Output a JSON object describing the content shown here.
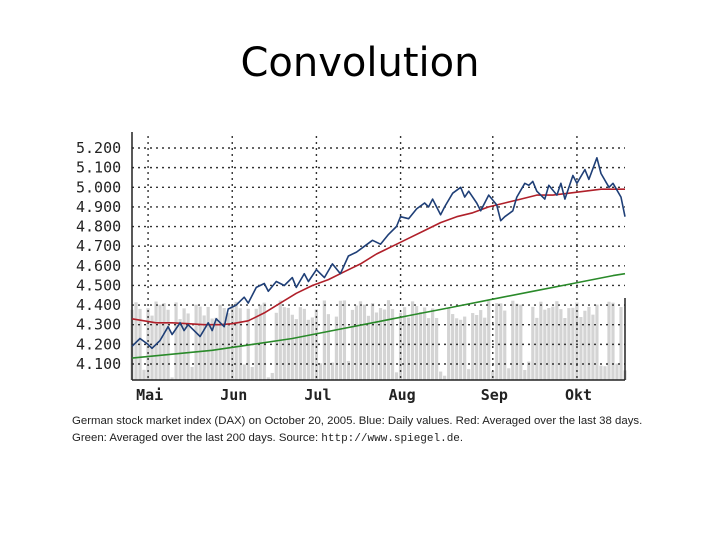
{
  "slide": {
    "title": "Convolution"
  },
  "caption": {
    "part1": "German stock market index (DAX) on October 20, 2005. Blue: Daily values. Red: Averaged over the last 38 days. Green: Averaged over the last 200 days. Source:",
    "source": "http://www.spiegel.de",
    "end": "."
  },
  "colors": {
    "blue": "#1f3f77",
    "red": "#b0202a",
    "green": "#2a8a2a",
    "volume": "#d4d4d4",
    "grid": "#333333"
  },
  "chart_data": {
    "type": "line",
    "title": "German stock market index (DAX)",
    "xlabel": "",
    "ylabel": "",
    "ylim": [
      4100,
      5200
    ],
    "grid": true,
    "yticks": [
      5200,
      5100,
      5000,
      4900,
      4800,
      4700,
      4600,
      4500,
      4400,
      4300,
      4200,
      4100
    ],
    "ytick_labels": [
      "5.200",
      "5.100",
      "5.000",
      "4.900",
      "4.800",
      "4.700",
      "4.600",
      "4.500",
      "4.400",
      "4.300",
      "4.200",
      "4.100"
    ],
    "xlim": [
      0,
      123
    ],
    "months": [
      {
        "label": "Mai",
        "day": 9
      },
      {
        "label": "Jun",
        "day": 30
      },
      {
        "label": "Jul",
        "day": 51
      },
      {
        "label": "Aug",
        "day": 72
      },
      {
        "label": "Sep",
        "day": 95
      },
      {
        "label": "Okt",
        "day": 116
      }
    ],
    "series": [
      {
        "name": "Daily values",
        "color": "blue",
        "points": [
          [
            0,
            4190
          ],
          [
            2,
            4230
          ],
          [
            4,
            4200
          ],
          [
            5,
            4180
          ],
          [
            7,
            4220
          ],
          [
            9,
            4290
          ],
          [
            10,
            4250
          ],
          [
            12,
            4310
          ],
          [
            13,
            4270
          ],
          [
            14,
            4300
          ],
          [
            16,
            4260
          ],
          [
            17,
            4240
          ],
          [
            19,
            4310
          ],
          [
            20,
            4270
          ],
          [
            21,
            4330
          ],
          [
            23,
            4290
          ],
          [
            24,
            4380
          ],
          [
            26,
            4400
          ],
          [
            28,
            4440
          ],
          [
            29,
            4410
          ],
          [
            31,
            4490
          ],
          [
            33,
            4510
          ],
          [
            34,
            4470
          ],
          [
            36,
            4520
          ],
          [
            38,
            4500
          ],
          [
            40,
            4540
          ],
          [
            41,
            4490
          ],
          [
            43,
            4560
          ],
          [
            44,
            4520
          ],
          [
            46,
            4580
          ],
          [
            48,
            4540
          ],
          [
            50,
            4610
          ],
          [
            52,
            4560
          ],
          [
            54,
            4650
          ],
          [
            56,
            4670
          ],
          [
            58,
            4700
          ],
          [
            60,
            4730
          ],
          [
            62,
            4710
          ],
          [
            64,
            4760
          ],
          [
            66,
            4800
          ],
          [
            67,
            4850
          ],
          [
            69,
            4840
          ],
          [
            71,
            4890
          ],
          [
            73,
            4920
          ],
          [
            74,
            4900
          ],
          [
            75,
            4940
          ],
          [
            77,
            4860
          ],
          [
            78,
            4900
          ],
          [
            80,
            4970
          ],
          [
            82,
            5000
          ],
          [
            83,
            4950
          ],
          [
            84,
            4980
          ],
          [
            86,
            4920
          ],
          [
            87,
            4880
          ],
          [
            89,
            4960
          ],
          [
            91,
            4910
          ],
          [
            92,
            4830
          ],
          [
            93,
            4850
          ],
          [
            95,
            4880
          ],
          [
            96,
            4950
          ],
          [
            98,
            5020
          ],
          [
            99,
            5010
          ],
          [
            100,
            5030
          ],
          [
            101,
            4980
          ],
          [
            103,
            4940
          ],
          [
            104,
            5010
          ],
          [
            106,
            4960
          ],
          [
            107,
            5020
          ],
          [
            108,
            4940
          ],
          [
            110,
            5060
          ],
          [
            111,
            5020
          ],
          [
            113,
            5090
          ],
          [
            114,
            5040
          ],
          [
            116,
            5150
          ],
          [
            117,
            5070
          ],
          [
            119,
            5000
          ],
          [
            120,
            5020
          ],
          [
            122,
            4950
          ],
          [
            123,
            4850
          ]
        ]
      },
      {
        "name": "Averaged over the last 38 days",
        "color": "red",
        "points": [
          [
            0,
            4330
          ],
          [
            3,
            4320
          ],
          [
            6,
            4310
          ],
          [
            10,
            4310
          ],
          [
            14,
            4305
          ],
          [
            18,
            4300
          ],
          [
            22,
            4300
          ],
          [
            25,
            4305
          ],
          [
            29,
            4320
          ],
          [
            33,
            4360
          ],
          [
            37,
            4410
          ],
          [
            41,
            4460
          ],
          [
            45,
            4500
          ],
          [
            49,
            4530
          ],
          [
            53,
            4570
          ],
          [
            57,
            4610
          ],
          [
            61,
            4660
          ],
          [
            65,
            4700
          ],
          [
            69,
            4740
          ],
          [
            73,
            4780
          ],
          [
            77,
            4820
          ],
          [
            81,
            4850
          ],
          [
            85,
            4870
          ],
          [
            89,
            4900
          ],
          [
            93,
            4920
          ],
          [
            97,
            4940
          ],
          [
            101,
            4960
          ],
          [
            105,
            4960
          ],
          [
            109,
            4970
          ],
          [
            113,
            4980
          ],
          [
            117,
            4990
          ],
          [
            121,
            4990
          ],
          [
            123,
            4990
          ]
        ]
      },
      {
        "name": "Averaged over the last 200 days",
        "color": "green",
        "points": [
          [
            0,
            4130
          ],
          [
            10,
            4150
          ],
          [
            20,
            4170
          ],
          [
            30,
            4200
          ],
          [
            40,
            4230
          ],
          [
            50,
            4270
          ],
          [
            60,
            4310
          ],
          [
            70,
            4350
          ],
          [
            80,
            4390
          ],
          [
            90,
            4430
          ],
          [
            100,
            4470
          ],
          [
            110,
            4510
          ],
          [
            120,
            4550
          ],
          [
            123,
            4560
          ]
        ]
      }
    ]
  }
}
